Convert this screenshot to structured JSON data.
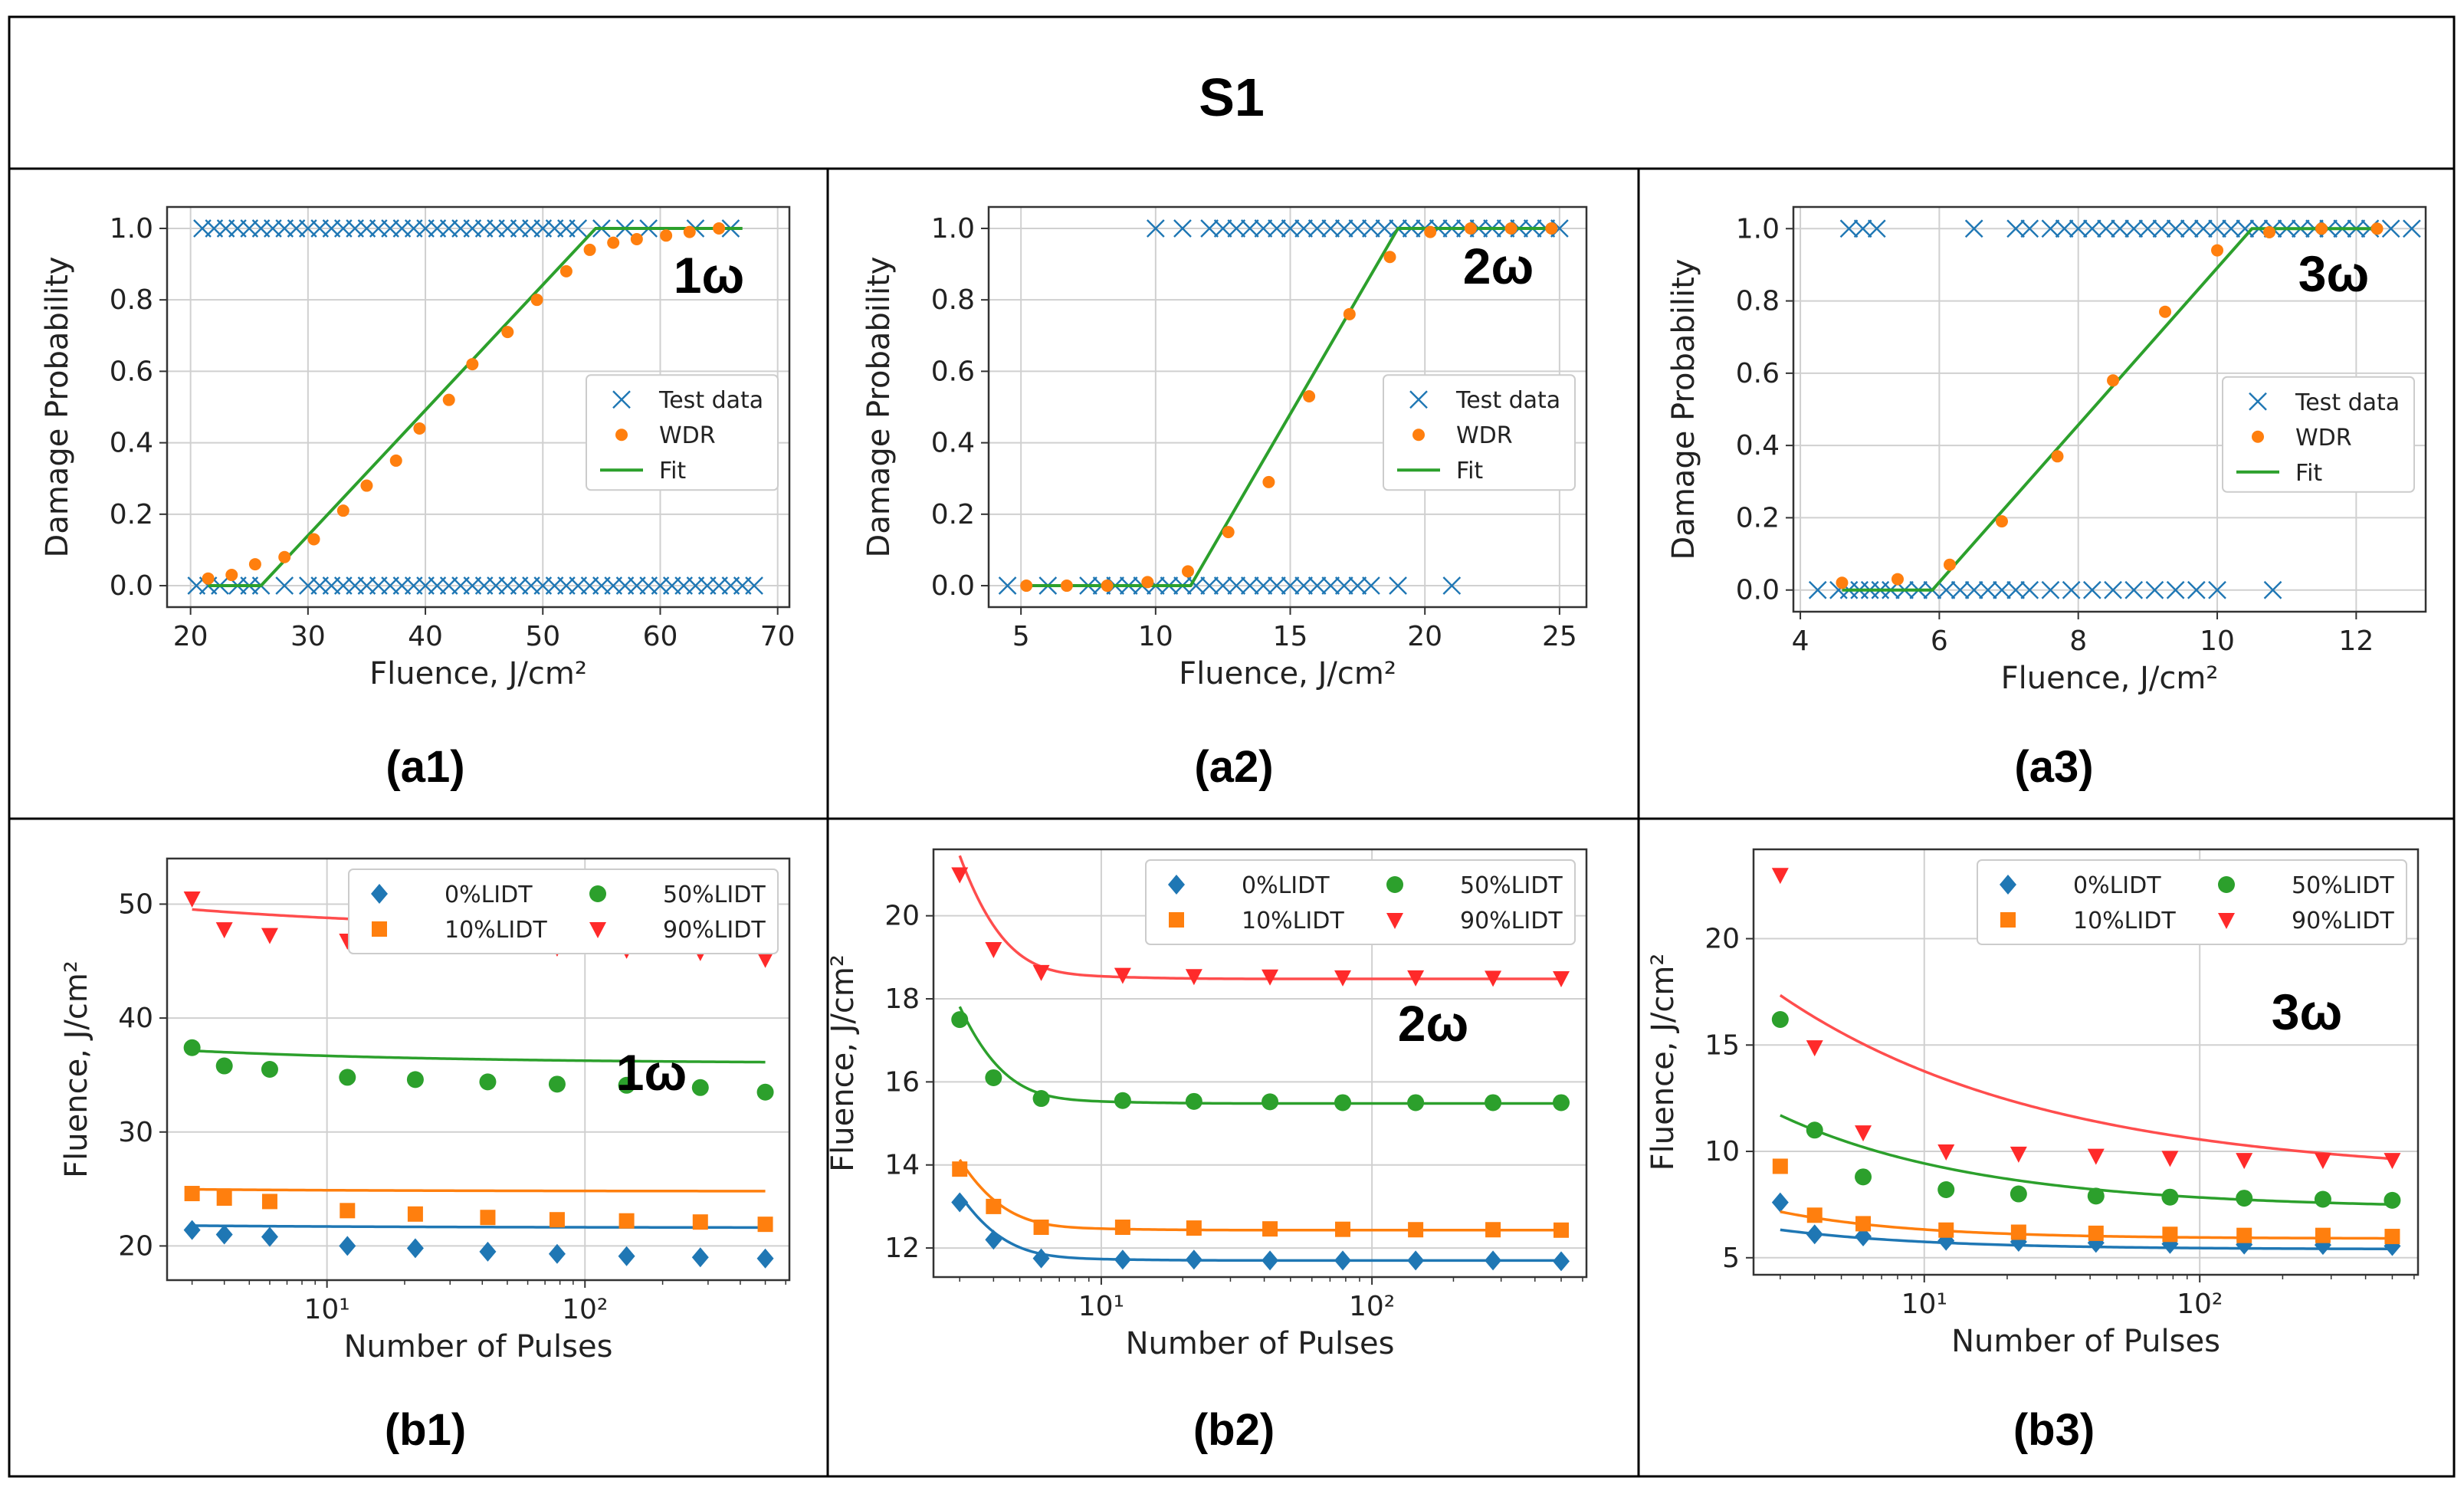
{
  "page": {
    "title": "S1",
    "colors": {
      "border": "#000000",
      "grid": "#d0d0d0",
      "axis": "#333333"
    }
  },
  "series_colors": {
    "test": "#1f77b4",
    "wdr": "#ff7f0e",
    "fit": "#2ca02c",
    "p0": "#1f77b4",
    "p10": "#ff7f0e",
    "p50": "#2ca02c",
    "p90": "#ff2a2a",
    "fit90": "#ff4d4d"
  },
  "chart_data": [
    {
      "id": "a1",
      "type": "scatter",
      "panel_label": "(a1)",
      "annotation": "1ω",
      "xlabel": "Fluence, J/cm²",
      "ylabel": "Damage Probability",
      "xlim": [
        18,
        71
      ],
      "ylim": [
        -0.06,
        1.06
      ],
      "xticks": [
        20,
        30,
        40,
        50,
        60,
        70
      ],
      "xtick_labels": [
        "20",
        "30",
        "40",
        "50",
        "60",
        "70"
      ],
      "yticks": [
        0,
        0.2,
        0.4,
        0.6,
        0.8,
        1.0
      ],
      "ytick_labels": [
        "0.0",
        "0.2",
        "0.4",
        "0.6",
        "0.8",
        "1.0"
      ],
      "legend": {
        "position": "center-right",
        "entries": [
          "Test data",
          "WDR",
          "Fit"
        ]
      },
      "test_data_fail": [
        20.5,
        21.5,
        22.5,
        24,
        25,
        26,
        28,
        30,
        31,
        32,
        33,
        34,
        35,
        36,
        37,
        38,
        39,
        40,
        41,
        42,
        43,
        44,
        45,
        46,
        47,
        48,
        49,
        50,
        51,
        52,
        53,
        54,
        55,
        56,
        57,
        58,
        59,
        60,
        61,
        62,
        63,
        64,
        65,
        66,
        67,
        68
      ],
      "test_data_pass": [
        21,
        22,
        23,
        24,
        25,
        26,
        27,
        28,
        29,
        30,
        31,
        32,
        33,
        34,
        35,
        36,
        37,
        38,
        39,
        40,
        41,
        42,
        43,
        44,
        45,
        46,
        47,
        48,
        49,
        50,
        51,
        52,
        53,
        55,
        57,
        59,
        63,
        66
      ],
      "wdr": {
        "x": [
          21.5,
          23.5,
          25.5,
          28,
          30.5,
          33,
          35,
          37.5,
          39.5,
          42,
          44,
          47,
          49.5,
          52,
          54,
          56,
          58,
          60.5,
          62.5,
          65
        ],
        "y": [
          0.02,
          0.03,
          0.06,
          0.08,
          0.13,
          0.21,
          0.28,
          0.35,
          0.44,
          0.52,
          0.62,
          0.71,
          0.8,
          0.88,
          0.94,
          0.96,
          0.97,
          0.98,
          0.99,
          1.0
        ]
      },
      "fit": {
        "x": [
          21.5,
          26,
          54.5,
          67
        ],
        "y": [
          0,
          0,
          1,
          1
        ]
      }
    },
    {
      "id": "a2",
      "type": "scatter",
      "panel_label": "(a2)",
      "annotation": "2ω",
      "xlabel": "Fluence, J/cm²",
      "ylabel": "Damage Probability",
      "xlim": [
        3.8,
        26
      ],
      "ylim": [
        -0.06,
        1.06
      ],
      "xticks": [
        5,
        10,
        15,
        20,
        25
      ],
      "xtick_labels": [
        "5",
        "10",
        "15",
        "20",
        "25"
      ],
      "yticks": [
        0,
        0.2,
        0.4,
        0.6,
        0.8,
        1.0
      ],
      "ytick_labels": [
        "0.0",
        "0.2",
        "0.4",
        "0.6",
        "0.8",
        "1.0"
      ],
      "legend": {
        "position": "center-right",
        "entries": [
          "Test data",
          "WDR",
          "Fit"
        ]
      },
      "test_data_fail": [
        4.5,
        6,
        7.5,
        8,
        8.5,
        9,
        9.5,
        10,
        10.5,
        11,
        11.5,
        12,
        12.5,
        13,
        13.5,
        14,
        14.5,
        15,
        15.5,
        16,
        16.5,
        17,
        17.5,
        18,
        19,
        21
      ],
      "test_data_pass": [
        10,
        11,
        12,
        12.5,
        13,
        13.5,
        14,
        14.5,
        15,
        15.5,
        16,
        16.5,
        17,
        17.5,
        18,
        18.5,
        19,
        19.5,
        20,
        20.5,
        21,
        21.5,
        22,
        22.5,
        23,
        23.5,
        24,
        24.5,
        25
      ],
      "wdr": {
        "x": [
          5.2,
          6.7,
          8.2,
          9.7,
          11.2,
          12.7,
          14.2,
          15.7,
          17.2,
          18.7,
          20.2,
          21.7,
          23.2,
          24.7
        ],
        "y": [
          0,
          0,
          0,
          0.01,
          0.04,
          0.15,
          0.29,
          0.53,
          0.76,
          0.92,
          0.99,
          1.0,
          1.0,
          1.0
        ]
      },
      "fit": {
        "x": [
          5.2,
          11.3,
          19,
          24.7
        ],
        "y": [
          0,
          0,
          1,
          1
        ]
      }
    },
    {
      "id": "a3",
      "type": "scatter",
      "panel_label": "(a3)",
      "annotation": "3ω",
      "xlabel": "Fluence, J/cm²",
      "ylabel": "Damage Probability",
      "xlim": [
        3.9,
        13.0
      ],
      "ylim": [
        -0.06,
        1.06
      ],
      "xticks": [
        4,
        6,
        8,
        10,
        12
      ],
      "xtick_labels": [
        "4",
        "6",
        "8",
        "10",
        "12"
      ],
      "yticks": [
        0,
        0.2,
        0.4,
        0.6,
        0.8,
        1.0
      ],
      "ytick_labels": [
        "0.0",
        "0.2",
        "0.4",
        "0.6",
        "0.8",
        "1.0"
      ],
      "legend": {
        "position": "center-right",
        "entries": [
          "Test data",
          "WDR",
          "Fit"
        ]
      },
      "test_data_fail": [
        4.25,
        4.55,
        4.7,
        4.85,
        5.0,
        5.15,
        5.3,
        5.5,
        5.7,
        5.9,
        6.1,
        6.3,
        6.5,
        6.7,
        6.9,
        7.1,
        7.3,
        7.6,
        7.9,
        8.2,
        8.5,
        8.8,
        9.1,
        9.4,
        9.7,
        10.0,
        10.8
      ],
      "test_data_pass": [
        4.7,
        4.9,
        5.1,
        6.5,
        7.1,
        7.3,
        7.6,
        7.8,
        8.0,
        8.2,
        8.4,
        8.6,
        8.8,
        9.0,
        9.2,
        9.4,
        9.6,
        9.8,
        10.0,
        10.2,
        10.4,
        10.6,
        10.8,
        11.0,
        11.2,
        11.4,
        11.6,
        11.8,
        12.0,
        12.2,
        12.5,
        12.8
      ],
      "wdr": {
        "x": [
          4.6,
          5.4,
          6.15,
          6.9,
          7.7,
          8.5,
          9.25,
          10.0,
          10.75,
          11.5,
          12.3
        ],
        "y": [
          0.02,
          0.03,
          0.07,
          0.19,
          0.37,
          0.58,
          0.77,
          0.94,
          0.99,
          1.0,
          1.0
        ]
      },
      "fit": {
        "x": [
          4.6,
          5.9,
          10.5,
          12.3
        ],
        "y": [
          0,
          0,
          1,
          1
        ]
      }
    },
    {
      "id": "b1",
      "type": "scatter",
      "panel_label": "(b1)",
      "annotation": "1ω",
      "xlabel": "Number of Pulses",
      "ylabel": "Fluence, J/cm²",
      "xscale": "log",
      "xlim": [
        2.4,
        620
      ],
      "ylim": [
        17,
        54
      ],
      "xticks": [
        10,
        100
      ],
      "xtick_labels": [
        "10¹",
        "10²"
      ],
      "yticks": [
        20,
        30,
        40,
        50
      ],
      "ytick_labels": [
        "20",
        "30",
        "40",
        "50"
      ],
      "legend": {
        "position": "top-right",
        "columns": 2,
        "entries": [
          "0%LIDT",
          "10%LIDT",
          "50%LIDT",
          "90%LIDT"
        ]
      },
      "x": [
        3,
        4,
        6,
        12,
        22,
        42,
        78,
        145,
        280,
        500
      ],
      "series": [
        {
          "name": "0%LIDT",
          "marker": "diamond",
          "values": [
            21.4,
            21.0,
            20.8,
            20.0,
            19.8,
            19.5,
            19.3,
            19.1,
            19.0,
            18.9
          ],
          "fit": {
            "a": 21.6,
            "b": 0.3,
            "c": -0.45
          }
        },
        {
          "name": "10%LIDT",
          "marker": "square",
          "values": [
            24.6,
            24.2,
            23.9,
            23.1,
            22.8,
            22.5,
            22.3,
            22.2,
            22.1,
            21.9
          ],
          "fit": {
            "a": 24.8,
            "b": 0.3,
            "c": -0.52
          }
        },
        {
          "name": "50%LIDT",
          "marker": "circle",
          "values": [
            37.4,
            35.8,
            35.5,
            34.8,
            34.6,
            34.4,
            34.2,
            34.1,
            33.9,
            33.5
          ],
          "fit": {
            "a": 36.0,
            "b": 1.8,
            "c": -0.42
          }
        },
        {
          "name": "90%LIDT",
          "marker": "triangle-down",
          "values": [
            50.5,
            47.8,
            47.3,
            46.8,
            46.6,
            46.4,
            46.2,
            46.0,
            45.8,
            45.2
          ],
          "fit": {
            "a": 47.6,
            "b": 3.0,
            "c": -0.4
          }
        }
      ]
    },
    {
      "id": "b2",
      "type": "scatter",
      "panel_label": "(b2)",
      "annotation": "2ω",
      "xlabel": "Number of Pulses",
      "ylabel": "Fluence, J/cm²",
      "xscale": "log",
      "xlim": [
        2.4,
        620
      ],
      "ylim": [
        11.3,
        21.6
      ],
      "xticks": [
        10,
        100
      ],
      "xtick_labels": [
        "10¹",
        "10²"
      ],
      "yticks": [
        12,
        14,
        16,
        18,
        20
      ],
      "ytick_labels": [
        "12",
        "14",
        "16",
        "18",
        "20"
      ],
      "legend": {
        "position": "top-right",
        "columns": 2,
        "entries": [
          "0%LIDT",
          "10%LIDT",
          "50%LIDT",
          "90%LIDT"
        ]
      },
      "x": [
        3,
        4,
        6,
        12,
        22,
        42,
        78,
        145,
        280,
        500
      ],
      "series": [
        {
          "name": "0%LIDT",
          "marker": "diamond",
          "values": [
            13.1,
            12.2,
            11.75,
            11.72,
            11.72,
            11.7,
            11.7,
            11.7,
            11.7,
            11.68
          ],
          "fit": {
            "a": 11.7,
            "b": 1.5,
            "c": 0
          }
        },
        {
          "name": "10%LIDT",
          "marker": "square",
          "values": [
            13.9,
            13.0,
            12.5,
            12.5,
            12.48,
            12.46,
            12.45,
            12.44,
            12.44,
            12.43
          ],
          "fit": {
            "a": 12.43,
            "b": 1.6,
            "c": 0
          }
        },
        {
          "name": "50%LIDT",
          "marker": "circle",
          "values": [
            17.5,
            16.1,
            15.6,
            15.55,
            15.53,
            15.52,
            15.5,
            15.5,
            15.5,
            15.5
          ],
          "fit": {
            "a": 15.48,
            "b": 2.2,
            "c": 0
          }
        },
        {
          "name": "90%LIDT",
          "marker": "triangle-down",
          "values": [
            21.0,
            19.2,
            18.65,
            18.58,
            18.55,
            18.54,
            18.52,
            18.52,
            18.51,
            18.5
          ],
          "fit": {
            "a": 18.48,
            "b": 2.8,
            "c": 0
          }
        }
      ]
    },
    {
      "id": "b3",
      "type": "scatter",
      "panel_label": "(b3)",
      "annotation": "3ω",
      "xlabel": "Number of Pulses",
      "ylabel": "Fluence, J/cm²",
      "xscale": "log",
      "xlim": [
        2.4,
        620
      ],
      "ylim": [
        4.2,
        24.2
      ],
      "xticks": [
        10,
        100
      ],
      "xtick_labels": [
        "10¹",
        "10²"
      ],
      "yticks": [
        5,
        10,
        15,
        20
      ],
      "ytick_labels": [
        "5",
        "10",
        "15",
        "20"
      ],
      "legend": {
        "position": "top-right",
        "columns": 2,
        "entries": [
          "0%LIDT",
          "10%LIDT",
          "50%LIDT",
          "90%LIDT"
        ]
      },
      "x": [
        3,
        4,
        6,
        12,
        22,
        42,
        78,
        145,
        280,
        500
      ],
      "series": [
        {
          "name": "0%LIDT",
          "marker": "diamond",
          "values": [
            7.6,
            6.1,
            6.0,
            5.8,
            5.75,
            5.7,
            5.65,
            5.62,
            5.6,
            5.55
          ],
          "fit": {
            "a": 5.4,
            "b": 2.2,
            "c": -0.8
          }
        },
        {
          "name": "10%LIDT",
          "marker": "square",
          "values": [
            9.3,
            7.0,
            6.6,
            6.3,
            6.2,
            6.15,
            6.1,
            6.05,
            6.05,
            6.0
          ],
          "fit": {
            "a": 5.9,
            "b": 3.4,
            "c": -0.9
          }
        },
        {
          "name": "50%LIDT",
          "marker": "circle",
          "values": [
            16.2,
            11.0,
            8.8,
            8.2,
            8.0,
            7.9,
            7.85,
            7.8,
            7.75,
            7.7
          ],
          "fit": {
            "a": 7.3,
            "b": 8.5,
            "c": -0.6
          }
        },
        {
          "name": "90%LIDT",
          "marker": "triangle-down",
          "values": [
            23.0,
            14.9,
            10.9,
            10.0,
            9.9,
            9.8,
            9.7,
            9.6,
            9.6,
            9.6
          ],
          "fit": {
            "a": 8.8,
            "b": 14.0,
            "c": -0.45
          }
        }
      ]
    }
  ]
}
